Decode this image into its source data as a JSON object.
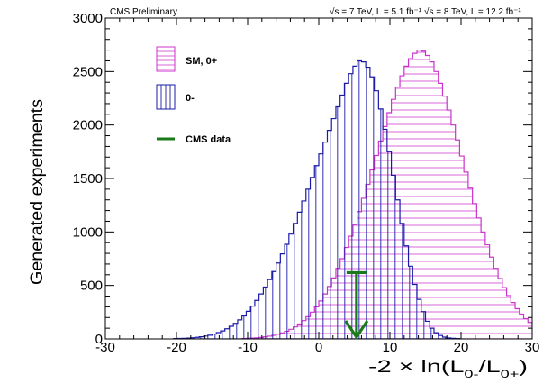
{
  "header": {
    "left": "CMS Preliminary",
    "right_a": "√s = 7 TeV, L = 5.1 fb⁻¹",
    "right_b": "√s = 8 TeV, L = 12.2 fb⁻¹"
  },
  "legend": {
    "sm": "SM, 0+",
    "ps": "0-",
    "data": "CMS data"
  },
  "colors": {
    "sm": "#cc33cc",
    "ps": "#1a1aa6",
    "data": "#1a7a1a"
  },
  "chart_data": {
    "type": "histogram",
    "xlabel": "-2 × ln(L0-/L0+)",
    "ylabel": "Generated experiments",
    "xlim": [
      -30,
      30
    ],
    "ylim": [
      0,
      3000
    ],
    "xticks": [
      -30,
      -20,
      -10,
      0,
      10,
      20,
      30
    ],
    "yticks": [
      0,
      500,
      1000,
      1500,
      2000,
      2500,
      3000
    ],
    "series": [
      {
        "name": "SM, 0+",
        "bin_width": 0.6,
        "x_start": -10.8,
        "values": [
          3,
          5,
          8,
          10,
          14,
          19,
          26,
          34,
          44,
          56,
          71,
          90,
          112,
          139,
          171,
          208,
          250,
          300,
          355,
          420,
          490,
          570,
          660,
          750,
          855,
          960,
          1070,
          1190,
          1315,
          1445,
          1580,
          1715,
          1850,
          1985,
          2115,
          2240,
          2355,
          2460,
          2550,
          2620,
          2670,
          2700,
          2690,
          2650,
          2590,
          2500,
          2390,
          2270,
          2140,
          2000,
          1860,
          1710,
          1560,
          1410,
          1265,
          1130,
          1000,
          880,
          765,
          660,
          565,
          480,
          405,
          340,
          282,
          232,
          190,
          154,
          124,
          99,
          79,
          62,
          48,
          37,
          28,
          21,
          15,
          11,
          8,
          5,
          3
        ]
      },
      {
        "name": "0-",
        "bin_width": 0.6,
        "x_start": -20.4,
        "values": [
          3,
          4,
          6,
          8,
          11,
          15,
          20,
          27,
          35,
          46,
          59,
          75,
          95,
          118,
          146,
          178,
          215,
          258,
          306,
          360,
          420,
          485,
          555,
          630,
          710,
          795,
          885,
          980,
          1080,
          1185,
          1290,
          1400,
          1510,
          1620,
          1730,
          1840,
          1950,
          2060,
          2170,
          2280,
          2390,
          2480,
          2550,
          2600,
          2590,
          2540,
          2450,
          2320,
          2150,
          1960,
          1750,
          1530,
          1300,
          1080,
          870,
          680,
          510,
          370,
          255,
          165,
          100,
          58,
          32,
          17,
          9,
          5,
          3
        ]
      }
    ],
    "annotations": [
      {
        "name": "CMS data",
        "x": 5.3,
        "y_top": 620,
        "y_bottom": 0
      }
    ]
  }
}
